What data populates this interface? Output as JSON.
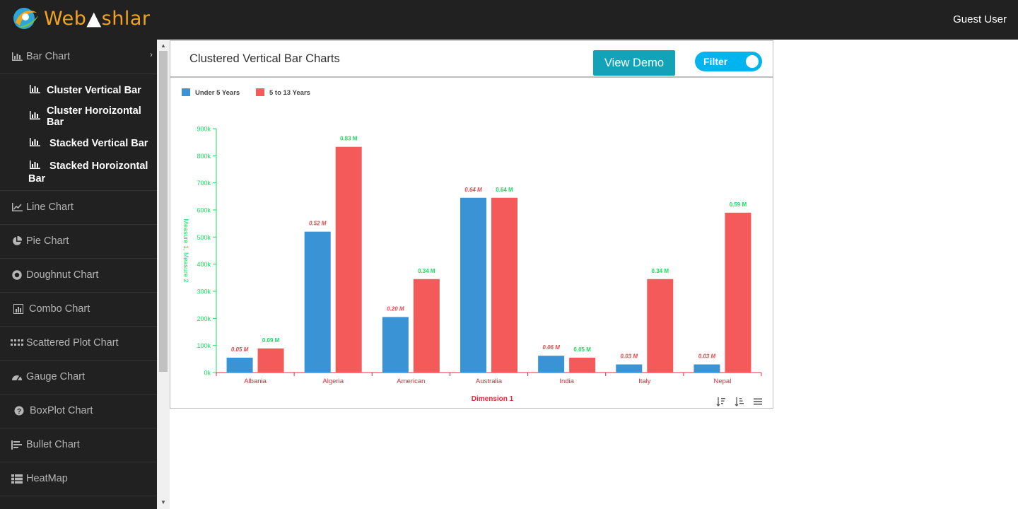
{
  "app": {
    "logo_text_a": "Web",
    "logo_text_b": "shlar",
    "user": "Guest User"
  },
  "sidebar": {
    "items": [
      {
        "label": "Bar Chart",
        "icon": "bar-chart-icon",
        "expanded": true
      },
      {
        "label": "Line Chart",
        "icon": "line-chart-icon"
      },
      {
        "label": "Pie Chart",
        "icon": "pie-chart-icon"
      },
      {
        "label": "Doughnut Chart",
        "icon": "doughnut-chart-icon"
      },
      {
        "label": "Combo Chart",
        "icon": "combo-chart-icon"
      },
      {
        "label": "Scattered Plot Chart",
        "icon": "scatter-chart-icon"
      },
      {
        "label": "Gauge Chart",
        "icon": "gauge-chart-icon"
      },
      {
        "label": "BoxPlot Chart",
        "icon": "question-circle-icon"
      },
      {
        "label": "Bullet Chart",
        "icon": "bullet-list-icon"
      },
      {
        "label": "HeatMap",
        "icon": "table-grid-icon"
      }
    ],
    "subitems": [
      {
        "label": "Cluster Vertical Bar"
      },
      {
        "label": "Cluster Horoizontal Bar"
      },
      {
        "label": "Stacked Vertical Bar"
      },
      {
        "label": "Stacked Horoizontal",
        "label_cont": "Bar"
      }
    ]
  },
  "card": {
    "title": "Clustered Vertical Bar Charts",
    "demo_button": "View Demo",
    "filter_label": "Filter"
  },
  "chart_data": {
    "type": "bar",
    "categories": [
      "Albania",
      "Algeria",
      "American",
      "Australia",
      "India",
      "Italy",
      "Nepal"
    ],
    "series": [
      {
        "name": "Under 5 Years",
        "color": "#3a93d4",
        "label_color": "#e8474a",
        "values": [
          0.05,
          0.52,
          0.2,
          0.64,
          0.06,
          0.03,
          0.03
        ]
      },
      {
        "name": "5 to 13 Years",
        "color": "#f55a5a",
        "label_color": "#17e05c",
        "values": [
          0.09,
          0.83,
          0.34,
          0.64,
          0.05,
          0.34,
          0.59
        ]
      }
    ],
    "plotted_values": [
      [
        55000,
        520000,
        205000,
        645000,
        62000,
        30000,
        30000
      ],
      [
        89000,
        833000,
        345000,
        645000,
        55000,
        345000,
        590000
      ]
    ],
    "data_label_suffix": " M",
    "y_ticks": [
      "0k",
      "100k",
      "200k",
      "300k",
      "400k",
      "500k",
      "600k",
      "700k",
      "800k",
      "900k"
    ],
    "ylim": [
      0,
      900000
    ],
    "xlabel": "Dimension 1",
    "ylabel": "Measure 1, Measure 2",
    "legend_position": "top-left",
    "axis_color_y": "#17e05c",
    "axis_color_x": "#e8283a"
  }
}
